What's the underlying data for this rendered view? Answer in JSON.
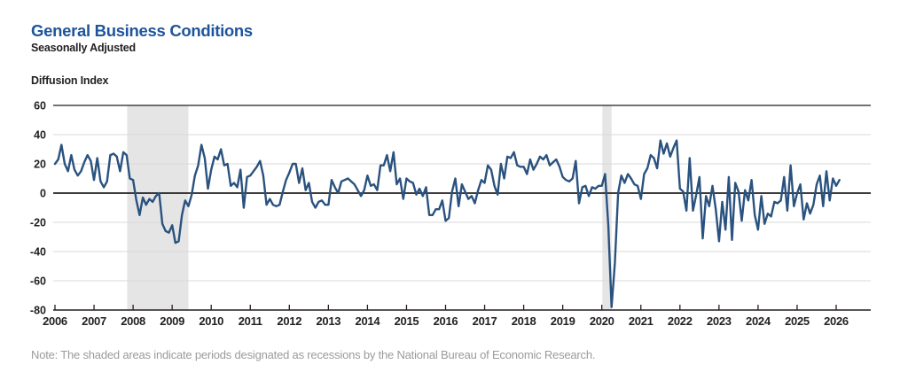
{
  "header": {
    "title": "General Business Conditions",
    "subtitle": "Seasonally Adjusted",
    "axis_caption": "Diffusion Index"
  },
  "note": "Note: The shaded areas indicate periods designated as recessions by the National Bureau of Economic Research.",
  "colors": {
    "title_blue": "#1e549b",
    "line_navy": "#2a527f",
    "recession_band": "#e5e5e5",
    "gridline": "#d9d9d9",
    "axis_black": "#231f20",
    "note_gray": "#9b9b9b"
  },
  "chart_data": {
    "type": "line",
    "title": "General Business Conditions",
    "subtitle": "Seasonally Adjusted",
    "ylabel": "Diffusion Index",
    "xlabel": "",
    "ylim": [
      -80,
      60
    ],
    "yticks": [
      60,
      40,
      20,
      0,
      -20,
      -40,
      -60,
      -80
    ],
    "xticks": [
      "2006",
      "2007",
      "2008",
      "2009",
      "2010",
      "2011",
      "2012",
      "2013",
      "2014",
      "2015",
      "2016",
      "2017",
      "2018",
      "2019",
      "2020",
      "2021",
      "2022",
      "2023",
      "2024",
      "2025",
      "2026"
    ],
    "grid": true,
    "zero_line": true,
    "legend_position": "none",
    "frequency": "monthly",
    "start_month": "2006-01",
    "recession_bands": [
      {
        "start": "2007-12",
        "end": "2009-06"
      },
      {
        "start": "2020-02",
        "end": "2020-04"
      }
    ],
    "series": [
      {
        "name": "General Business Conditions (diffusion index, seasonally adjusted)",
        "values": [
          20,
          23,
          33,
          20,
          15,
          26,
          16,
          12,
          15,
          21,
          26,
          22,
          9,
          24,
          8,
          4,
          8,
          26,
          27,
          25,
          15,
          28,
          26,
          10,
          9,
          -5,
          -15,
          -3,
          -8,
          -4,
          -6,
          -2,
          0,
          -21,
          -26,
          -27,
          -22,
          -34,
          -33,
          -15,
          -5,
          -9,
          -1,
          12,
          19,
          33,
          24,
          3,
          16,
          25,
          23,
          30,
          19,
          20,
          5,
          7,
          4,
          16,
          -10,
          11,
          12,
          15,
          18,
          22,
          12,
          -8,
          -4,
          -8,
          -9,
          -8,
          1,
          9,
          14,
          20,
          20,
          7,
          17,
          2,
          7,
          -6,
          -10,
          -6,
          -5,
          -8,
          -8,
          9,
          4,
          0,
          8,
          9,
          10,
          8,
          6,
          2,
          -2,
          2,
          12,
          5,
          6,
          2,
          19,
          19,
          26,
          15,
          28,
          6,
          10,
          -4,
          10,
          8,
          7,
          -1,
          3,
          -2,
          4,
          -15,
          -15,
          -11,
          -11,
          -5,
          -19,
          -17,
          1,
          10,
          -9,
          6,
          1,
          -4,
          -2,
          -7,
          2,
          9,
          7,
          19,
          16,
          5,
          -1,
          20,
          10,
          25,
          24,
          28,
          19,
          18,
          18,
          13,
          23,
          16,
          20,
          25,
          23,
          26,
          19,
          21,
          23,
          18,
          11,
          9,
          8,
          10,
          22,
          -7,
          4,
          5,
          -2,
          4,
          3,
          5,
          5,
          13,
          -22,
          -78,
          -48,
          0,
          12,
          7,
          13,
          10,
          6,
          5,
          -4,
          13,
          17,
          26,
          24,
          17,
          36,
          27,
          34,
          25,
          31,
          36,
          3,
          1,
          -12,
          24,
          -12,
          -1,
          11,
          -31,
          -2,
          -9,
          5,
          -11,
          -33,
          -6,
          -25,
          11,
          -32,
          7,
          1,
          -19,
          2,
          -5,
          9,
          -15,
          -25,
          -2,
          -21,
          -14,
          -16,
          -6,
          -7,
          -5,
          11,
          -12,
          19,
          -9,
          0,
          6,
          -18,
          -7,
          -14,
          -8,
          6,
          12,
          -9,
          15,
          -5,
          10,
          5,
          9
        ]
      }
    ]
  }
}
